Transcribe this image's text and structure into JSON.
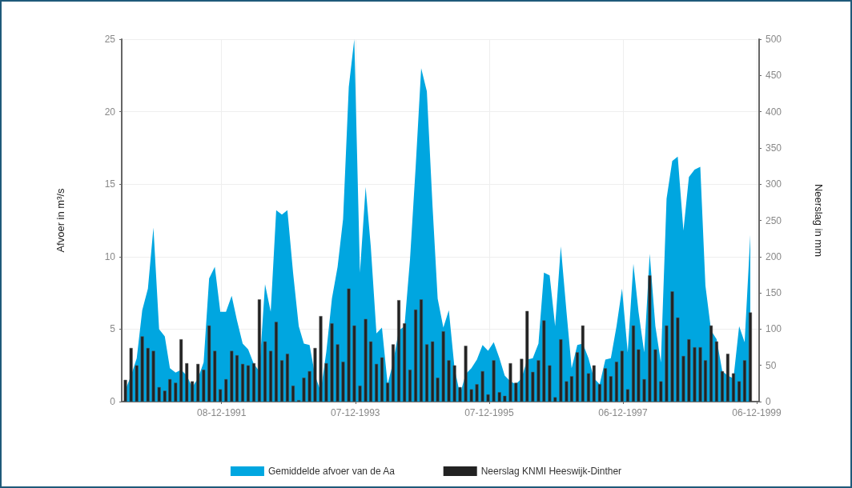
{
  "chart_data": {
    "type": "area",
    "xlabel": null,
    "ylabel": "Afvoer in m³/s",
    "y2label": "Neerslag in mm",
    "x": [
      "1990-07",
      "1990-08",
      "1990-09",
      "1990-10",
      "1990-11",
      "1990-12",
      "1991-01",
      "1991-02",
      "1991-03",
      "1991-04",
      "1991-05",
      "1991-06",
      "1991-07",
      "1991-08",
      "1991-09",
      "1991-10",
      "1991-11",
      "1991-12",
      "1992-01",
      "1992-02",
      "1992-03",
      "1992-04",
      "1992-05",
      "1992-06",
      "1992-07",
      "1992-08",
      "1992-09",
      "1992-10",
      "1992-11",
      "1992-12",
      "1993-01",
      "1993-02",
      "1993-03",
      "1993-04",
      "1993-05",
      "1993-06",
      "1993-07",
      "1993-08",
      "1993-09",
      "1993-10",
      "1993-11",
      "1993-12",
      "1994-01",
      "1994-02",
      "1994-03",
      "1994-04",
      "1994-05",
      "1994-06",
      "1994-07",
      "1994-08",
      "1994-09",
      "1994-10",
      "1994-11",
      "1994-12",
      "1995-01",
      "1995-02",
      "1995-03",
      "1995-04",
      "1995-05",
      "1995-06",
      "1995-07",
      "1995-08",
      "1995-09",
      "1995-10",
      "1995-11",
      "1995-12",
      "1996-01",
      "1996-02",
      "1996-03",
      "1996-04",
      "1996-05",
      "1996-06",
      "1996-07",
      "1996-08",
      "1996-09",
      "1996-10",
      "1996-11",
      "1996-12",
      "1997-01",
      "1997-02",
      "1997-03",
      "1997-04",
      "1997-05",
      "1997-06",
      "1997-07",
      "1997-08",
      "1997-09",
      "1997-10",
      "1997-11",
      "1997-12",
      "1998-01",
      "1998-02",
      "1998-03",
      "1998-04",
      "1998-05",
      "1998-06",
      "1998-07",
      "1998-08",
      "1998-09",
      "1998-10",
      "1998-11",
      "1998-12",
      "1999-01",
      "1999-02",
      "1999-03",
      "1999-04",
      "1999-05",
      "1999-06",
      "1999-07",
      "1999-08",
      "1999-09",
      "1999-10",
      "1999-11"
    ],
    "series": [
      {
        "name": "Gemiddelde afvoer van de Aa",
        "color": "#00a6e0",
        "values": [
          0.8,
          1.8,
          3.0,
          6.3,
          7.8,
          12.0,
          5.0,
          4.5,
          2.3,
          2.0,
          2.2,
          1.8,
          1.0,
          1.6,
          2.7,
          8.5,
          9.3,
          6.2,
          6.2,
          7.3,
          5.6,
          4.0,
          3.6,
          2.6,
          2.1,
          8.1,
          6.2,
          13.2,
          12.9,
          13.2,
          8.9,
          5.2,
          4.0,
          3.9,
          1.8,
          0.7,
          3.4,
          7.1,
          9.3,
          12.6,
          21.7,
          25,
          8.9,
          14.8,
          10.7,
          4.7,
          5.1,
          1.2,
          2.7,
          4.9,
          5.2,
          9.8,
          16.2,
          23.0,
          21.4,
          13.5,
          7.1,
          5.1,
          6.3,
          2.3,
          0.5,
          1.9,
          2.3,
          2.9,
          3.9,
          3.5,
          4.1,
          3.0,
          1.8,
          1.4,
          1.2,
          1.6,
          2.9,
          3.0,
          4.0,
          8.9,
          8.7,
          5.2,
          10.7,
          6.2,
          2.3,
          3.9,
          4.0,
          3.0,
          1.6,
          1.2,
          2.9,
          3.0,
          5.2,
          7.8,
          3.4,
          9.5,
          6.2,
          3.4,
          10.2,
          5.2,
          2.7,
          14.0,
          16.6,
          16.9,
          11.8,
          15.5,
          16.0,
          16.2,
          8.0,
          4.9,
          4.3,
          2.1,
          1.8,
          1.6,
          5.2,
          4.1,
          11.5
        ]
      },
      {
        "name": "Neerslag KNMI Heeswijk-Dinther",
        "type": "bar",
        "axis": "y2",
        "color": "#222222",
        "values": [
          30,
          74,
          50,
          90,
          74,
          70,
          20,
          15,
          31,
          26,
          86,
          53,
          28,
          52,
          44,
          105,
          70,
          17,
          31,
          70,
          64,
          52,
          50,
          53,
          141,
          83,
          70,
          110,
          57,
          66,
          22,
          2,
          33,
          42,
          74,
          118,
          53,
          108,
          79,
          55,
          156,
          105,
          22,
          114,
          83,
          52,
          61,
          26,
          79,
          140,
          108,
          44,
          127,
          141,
          79,
          83,
          33,
          97,
          57,
          50,
          20,
          77,
          17,
          24,
          42,
          10,
          57,
          13,
          8,
          53,
          26,
          59,
          125,
          41,
          57,
          112,
          50,
          6,
          86,
          28,
          35,
          68,
          105,
          39,
          50,
          24,
          46,
          35,
          55,
          70,
          17,
          105,
          72,
          31,
          174,
          72,
          28,
          105,
          152,
          116,
          63,
          86,
          75,
          75,
          57,
          105,
          83,
          42,
          66,
          39,
          28,
          57,
          123
        ]
      }
    ],
    "xlim": [
      "1990-06-11",
      "1999-12-19"
    ],
    "xticks": [
      {
        "value": "1991-12-08",
        "label": "08-12-1991"
      },
      {
        "value": "1993-12-07",
        "label": "07-12-1993"
      },
      {
        "value": "1995-12-07",
        "label": "07-12-1995"
      },
      {
        "value": "1997-12-06",
        "label": "06-12-1997"
      },
      {
        "value": "1999-12-06",
        "label": "06-12-1999"
      }
    ],
    "ylim": [
      0,
      25
    ],
    "yticks": [
      0,
      5,
      10,
      15,
      20,
      25
    ],
    "y2lim": [
      0,
      500
    ],
    "y2ticks": [
      0,
      50,
      100,
      150,
      200,
      250,
      300,
      350,
      400,
      450,
      500
    ],
    "grid": true,
    "legend": "bottom"
  }
}
